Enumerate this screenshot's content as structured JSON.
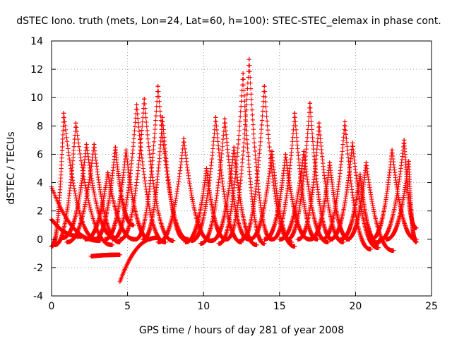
{
  "chart_data": {
    "type": "scatter",
    "title": "dSTEC Iono. truth (mets, Lon=24, Lat=60, h=100): STEC-STEC_elemax in phase cont.",
    "xlabel": "GPS time / hours of day 281 of year 2008",
    "ylabel": "dSTEC  / TECUs",
    "xlim": [
      0,
      25
    ],
    "ylim": [
      -4,
      14
    ],
    "xticks": [
      0,
      5,
      10,
      15,
      20,
      25
    ],
    "yticks": [
      -4,
      -2,
      0,
      2,
      4,
      6,
      8,
      10,
      12,
      14
    ],
    "grid": true,
    "marker": "+",
    "series_color": "#ff0000",
    "arcs": [
      {
        "start": 0.0,
        "peak": 0.0,
        "end": 3.2,
        "peak_value": 3.7,
        "start_value": 3.7,
        "end_value": -0.1
      },
      {
        "start": 0.0,
        "peak": 0.0,
        "end": 2.0,
        "peak_value": 1.4,
        "start_value": 1.4,
        "end_value": 0.2
      },
      {
        "start": 0.0,
        "peak": 0.8,
        "end": 3.0,
        "peak_value": 8.9,
        "start_value": -0.5,
        "end_value": 0.0
      },
      {
        "start": 0.2,
        "peak": 1.6,
        "end": 4.0,
        "peak_value": 8.2,
        "start_value": -0.4,
        "end_value": -0.4
      },
      {
        "start": 0.7,
        "peak": 2.3,
        "end": 4.2,
        "peak_value": 6.7,
        "start_value": 0.1,
        "end_value": 0.1
      },
      {
        "start": 1.0,
        "peak": 2.8,
        "end": 4.5,
        "peak_value": 6.7,
        "start_value": -0.2,
        "end_value": -0.2
      },
      {
        "start": 2.2,
        "peak": 3.7,
        "end": 5.5,
        "peak_value": 4.7,
        "start_value": 0.0,
        "end_value": 0.0
      },
      {
        "start": 2.8,
        "peak": 4.2,
        "end": 5.4,
        "peak_value": 6.5,
        "start_value": 0.0,
        "end_value": 1.0
      },
      {
        "start": 2.6,
        "peak": 2.6,
        "end": 4.5,
        "peak_value": -1.2,
        "start_value": -1.2,
        "end_value": -1.1
      },
      {
        "start": 4.5,
        "peak": 4.5,
        "end": 7.0,
        "peak_value": -3.0,
        "start_value": -3.0,
        "end_value": 0.1
      },
      {
        "start": 3.5,
        "peak": 4.9,
        "end": 6.5,
        "peak_value": 6.3,
        "start_value": 0.0,
        "end_value": 0.0
      },
      {
        "start": 4.0,
        "peak": 5.6,
        "end": 7.5,
        "peak_value": 9.5,
        "start_value": 0.0,
        "end_value": -0.2
      },
      {
        "start": 4.5,
        "peak": 6.1,
        "end": 8.0,
        "peak_value": 9.9,
        "start_value": 0.0,
        "end_value": -0.1
      },
      {
        "start": 5.5,
        "peak": 7.0,
        "end": 9.0,
        "peak_value": 10.8,
        "start_value": 0.0,
        "end_value": 0.0
      },
      {
        "start": 6.0,
        "peak": 7.3,
        "end": 8.8,
        "peak_value": 8.6,
        "start_value": 0.0,
        "end_value": 0.0
      },
      {
        "start": 7.0,
        "peak": 8.7,
        "end": 10.5,
        "peak_value": 7.1,
        "start_value": -0.2,
        "end_value": -0.1
      },
      {
        "start": 8.8,
        "peak": 10.2,
        "end": 11.5,
        "peak_value": 5.0,
        "start_value": -0.2,
        "end_value": 0.0
      },
      {
        "start": 9.2,
        "peak": 10.8,
        "end": 12.5,
        "peak_value": 8.6,
        "start_value": -0.1,
        "end_value": -0.2
      },
      {
        "start": 9.8,
        "peak": 11.4,
        "end": 13.0,
        "peak_value": 8.5,
        "start_value": -0.3,
        "end_value": 0.0
      },
      {
        "start": 10.5,
        "peak": 12.0,
        "end": 13.5,
        "peak_value": 6.5,
        "start_value": -0.1,
        "end_value": -0.4
      },
      {
        "start": 11.0,
        "peak": 12.6,
        "end": 14.0,
        "peak_value": 11.7,
        "start_value": -0.3,
        "end_value": -0.3
      },
      {
        "start": 11.5,
        "peak": 13.0,
        "end": 14.5,
        "peak_value": 12.7,
        "start_value": 0.0,
        "end_value": 0.0
      },
      {
        "start": 12.5,
        "peak": 14.0,
        "end": 15.8,
        "peak_value": 10.8,
        "start_value": 0.0,
        "end_value": -0.2
      },
      {
        "start": 13.0,
        "peak": 14.5,
        "end": 16.0,
        "peak_value": 6.2,
        "start_value": 0.0,
        "end_value": -0.5
      },
      {
        "start": 14.0,
        "peak": 15.4,
        "end": 17.0,
        "peak_value": 6.0,
        "start_value": 0.0,
        "end_value": 0.0
      },
      {
        "start": 14.5,
        "peak": 16.0,
        "end": 17.5,
        "peak_value": 8.9,
        "start_value": 0.0,
        "end_value": 0.0
      },
      {
        "start": 15.0,
        "peak": 16.6,
        "end": 18.2,
        "peak_value": 6.2,
        "start_value": 0.0,
        "end_value": -0.2
      },
      {
        "start": 15.5,
        "peak": 17.0,
        "end": 18.5,
        "peak_value": 9.6,
        "start_value": 0.0,
        "end_value": 0.0
      },
      {
        "start": 16.2,
        "peak": 17.6,
        "end": 19.2,
        "peak_value": 8.2,
        "start_value": 0.0,
        "end_value": -0.2
      },
      {
        "start": 17.0,
        "peak": 18.3,
        "end": 19.6,
        "peak_value": 5.4,
        "start_value": 0.0,
        "end_value": 0.0
      },
      {
        "start": 17.8,
        "peak": 19.3,
        "end": 21.0,
        "peak_value": 8.3,
        "start_value": 0.0,
        "end_value": -0.7
      },
      {
        "start": 18.3,
        "peak": 19.8,
        "end": 21.5,
        "peak_value": 6.8,
        "start_value": 0.0,
        "end_value": -0.6
      },
      {
        "start": 19.0,
        "peak": 20.3,
        "end": 21.5,
        "peak_value": 4.6,
        "start_value": 0.0,
        "end_value": -0.3
      },
      {
        "start": 19.4,
        "peak": 20.7,
        "end": 22.5,
        "peak_value": 5.4,
        "start_value": 0.0,
        "end_value": -0.8
      },
      {
        "start": 21.0,
        "peak": 22.4,
        "end": 24.0,
        "peak_value": 6.3,
        "start_value": 0.0,
        "end_value": 0.0
      },
      {
        "start": 21.5,
        "peak": 23.2,
        "end": 24.0,
        "peak_value": 7.0,
        "start_value": -0.1,
        "end_value": 0.8
      },
      {
        "start": 22.0,
        "peak": 23.5,
        "end": 24.0,
        "peak_value": 5.5,
        "start_value": 0.0,
        "end_value": -0.2
      }
    ]
  }
}
